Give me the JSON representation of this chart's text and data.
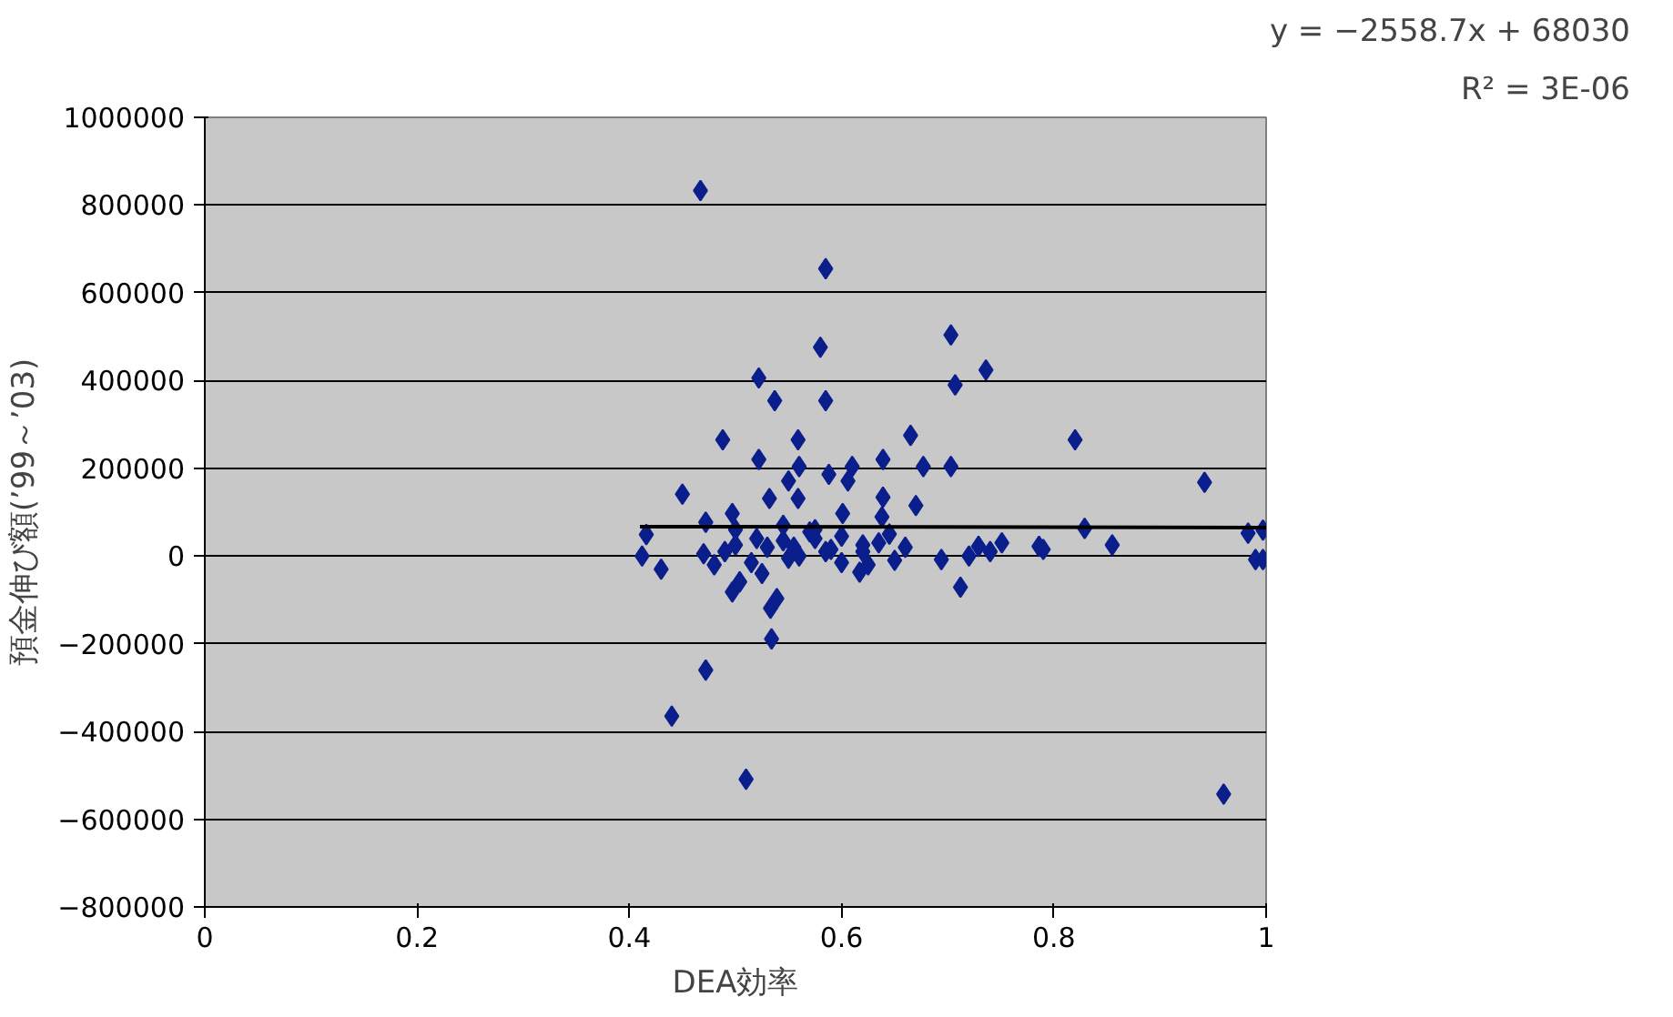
{
  "chart_data": {
    "type": "scatter",
    "xlabel": "DEA効率",
    "ylabel": "預金伸び額(’99～’03)",
    "annotations": [
      "y = −2558.7x + 68030",
      "R² = 3E-06"
    ],
    "xlim": [
      0,
      1
    ],
    "xticks": [
      0,
      0.2,
      0.4,
      0.6,
      0.8,
      1
    ],
    "ylim": [
      -800000,
      1000000
    ],
    "yticks": [
      -800000,
      -600000,
      -400000,
      -200000,
      0,
      200000,
      400000,
      600000,
      800000,
      1000000
    ],
    "grid": "y",
    "marker": "diamond",
    "series": [
      {
        "color": "#0a1e8c",
        "x": [
          0.467,
          0.585,
          0.58,
          0.522,
          0.537,
          0.585,
          0.703,
          0.707,
          0.736,
          0.488,
          0.559,
          0.665,
          0.82,
          0.522,
          0.639,
          0.677,
          0.703,
          0.45,
          0.942,
          0.56,
          0.588,
          0.61,
          0.606,
          0.55,
          0.532,
          0.559,
          0.639,
          0.67,
          0.601,
          0.638,
          0.497,
          0.472,
          0.416,
          0.829,
          0.855,
          0.983,
          0.997,
          0.99,
          0.412,
          0.786,
          0.751,
          0.729,
          0.694,
          0.43,
          0.497,
          0.533,
          0.534,
          0.712,
          0.472,
          0.44,
          0.51,
          0.96,
          0.997,
          0.504,
          0.539,
          0.617,
          0.47,
          0.49,
          0.515,
          0.53,
          0.545,
          0.56,
          0.575,
          0.59,
          0.6,
          0.62,
          0.635,
          0.65,
          0.66,
          0.48,
          0.5,
          0.52,
          0.545,
          0.555,
          0.57,
          0.585,
          0.6,
          0.625,
          0.645,
          0.72,
          0.74,
          0.79,
          0.5,
          0.525,
          0.55,
          0.575,
          0.62
        ],
        "values": [
          833000,
          655000,
          476000,
          406000,
          354000,
          354000,
          504000,
          390000,
          424000,
          265000,
          265000,
          275000,
          265000,
          220000,
          220000,
          204000,
          204000,
          141000,
          168000,
          204000,
          186000,
          204000,
          171000,
          171000,
          131000,
          131000,
          134000,
          115000,
          97000,
          89000,
          97000,
          77000,
          49000,
          63000,
          25000,
          52000,
          59000,
          -8000,
          0,
          22000,
          30000,
          22000,
          -8000,
          -30000,
          -82000,
          -119000,
          -189000,
          -71000,
          -260000,
          -365000,
          -509000,
          -543000,
          -8000,
          -59000,
          -97000,
          -37000,
          5000,
          10000,
          -15000,
          20000,
          35000,
          0,
          40000,
          15000,
          45000,
          10000,
          30000,
          -10000,
          20000,
          -20000,
          60000,
          40000,
          70000,
          20000,
          55000,
          10000,
          -15000,
          -20000,
          50000,
          0,
          10000,
          15000,
          25000,
          -40000,
          -5000,
          60000,
          25000
        ]
      },
      {
        "type": "line",
        "marker": "none",
        "color": "#000000",
        "x": [
          0.41,
          1.0
        ],
        "values": [
          67000,
          65000
        ]
      }
    ]
  }
}
